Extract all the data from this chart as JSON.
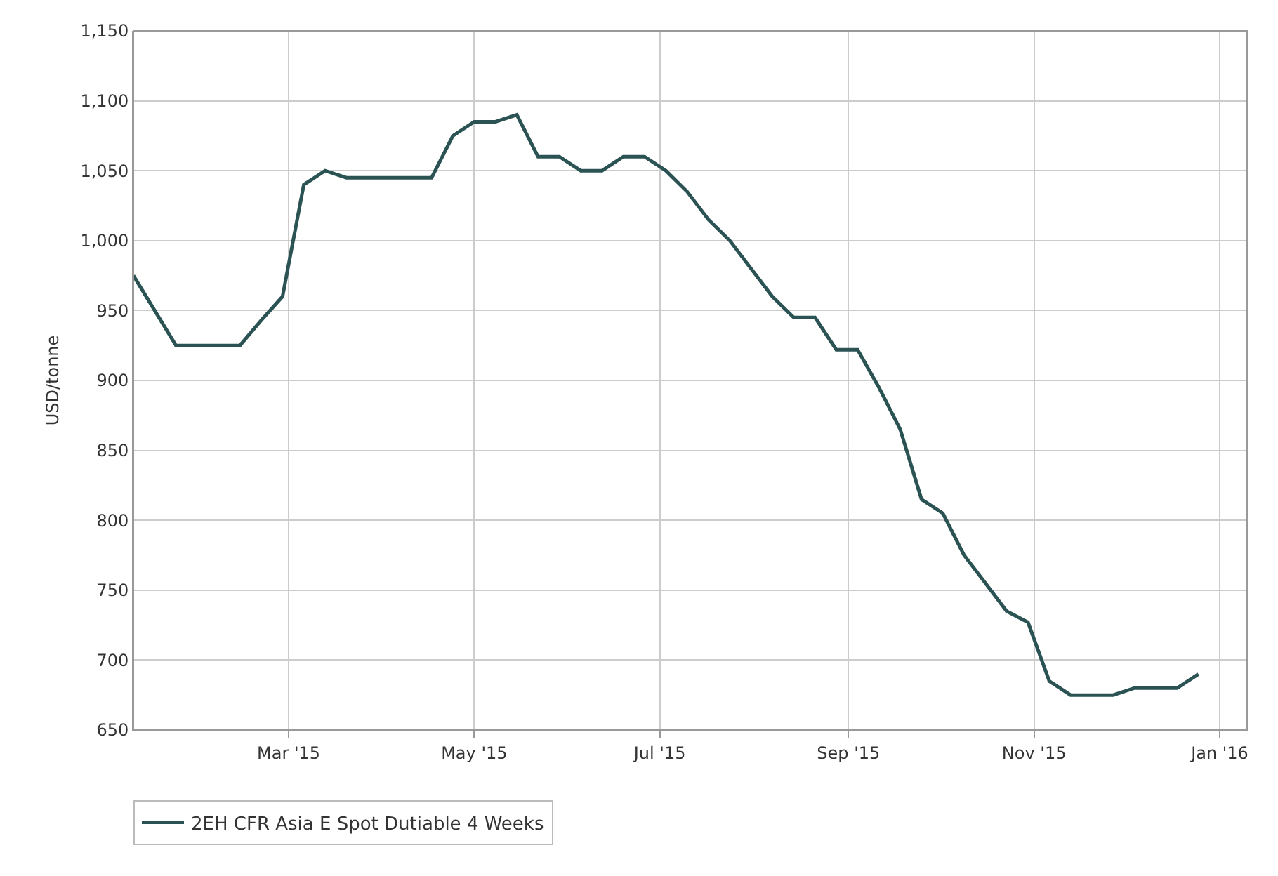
{
  "chart_data": {
    "type": "line",
    "ylabel": "USD/tonne",
    "x": [
      "2015-01-09",
      "2015-01-16",
      "2015-01-23",
      "2015-01-30",
      "2015-02-06",
      "2015-02-13",
      "2015-02-20",
      "2015-02-27",
      "2015-03-06",
      "2015-03-13",
      "2015-03-20",
      "2015-03-27",
      "2015-04-03",
      "2015-04-10",
      "2015-04-17",
      "2015-04-24",
      "2015-05-01",
      "2015-05-08",
      "2015-05-15",
      "2015-05-22",
      "2015-05-29",
      "2015-06-05",
      "2015-06-12",
      "2015-06-19",
      "2015-06-26",
      "2015-07-03",
      "2015-07-10",
      "2015-07-17",
      "2015-07-24",
      "2015-07-31",
      "2015-08-07",
      "2015-08-14",
      "2015-08-21",
      "2015-08-28",
      "2015-09-04",
      "2015-09-11",
      "2015-09-18",
      "2015-09-25",
      "2015-10-02",
      "2015-10-09",
      "2015-10-16",
      "2015-10-23",
      "2015-10-30",
      "2015-11-06",
      "2015-11-13",
      "2015-11-20",
      "2015-11-27",
      "2015-12-04",
      "2015-12-11",
      "2015-12-18",
      "2015-12-25"
    ],
    "series": [
      {
        "name": "2EH CFR Asia E Spot Dutiable 4 Weeks",
        "color": "#2c5354",
        "values": [
          975,
          950,
          925,
          925,
          925,
          925,
          943,
          960,
          1040,
          1050,
          1045,
          1045,
          1045,
          1045,
          1045,
          1075,
          1085,
          1085,
          1090,
          1060,
          1060,
          1050,
          1050,
          1060,
          1060,
          1050,
          1035,
          1015,
          1000,
          980,
          960,
          945,
          945,
          922,
          922,
          895,
          865,
          815,
          805,
          775,
          755,
          735,
          727,
          685,
          675,
          675,
          675,
          680,
          680,
          680,
          690
        ]
      }
    ],
    "xlim": [
      "2015-01-09",
      "2016-01-10"
    ],
    "xticks": [
      {
        "value": "2015-03-01",
        "label": "Mar '15"
      },
      {
        "value": "2015-05-01",
        "label": "May '15"
      },
      {
        "value": "2015-07-01",
        "label": "Jul '15"
      },
      {
        "value": "2015-09-01",
        "label": "Sep '15"
      },
      {
        "value": "2015-11-01",
        "label": "Nov '15"
      },
      {
        "value": "2016-01-01",
        "label": "Jan '16"
      }
    ],
    "ylim": [
      650,
      1150
    ],
    "yticks": [
      {
        "value": 650,
        "label": "650"
      },
      {
        "value": 700,
        "label": "700"
      },
      {
        "value": 750,
        "label": "750"
      },
      {
        "value": 800,
        "label": "800"
      },
      {
        "value": 850,
        "label": "850"
      },
      {
        "value": 900,
        "label": "900"
      },
      {
        "value": 950,
        "label": "950"
      },
      {
        "value": 1000,
        "label": "1,000"
      },
      {
        "value": 1050,
        "label": "1,050"
      },
      {
        "value": 1100,
        "label": "1,100"
      },
      {
        "value": 1150,
        "label": "1,150"
      }
    ],
    "grid": true,
    "legend": "bottom",
    "marker": "none",
    "line_style": "solid"
  }
}
